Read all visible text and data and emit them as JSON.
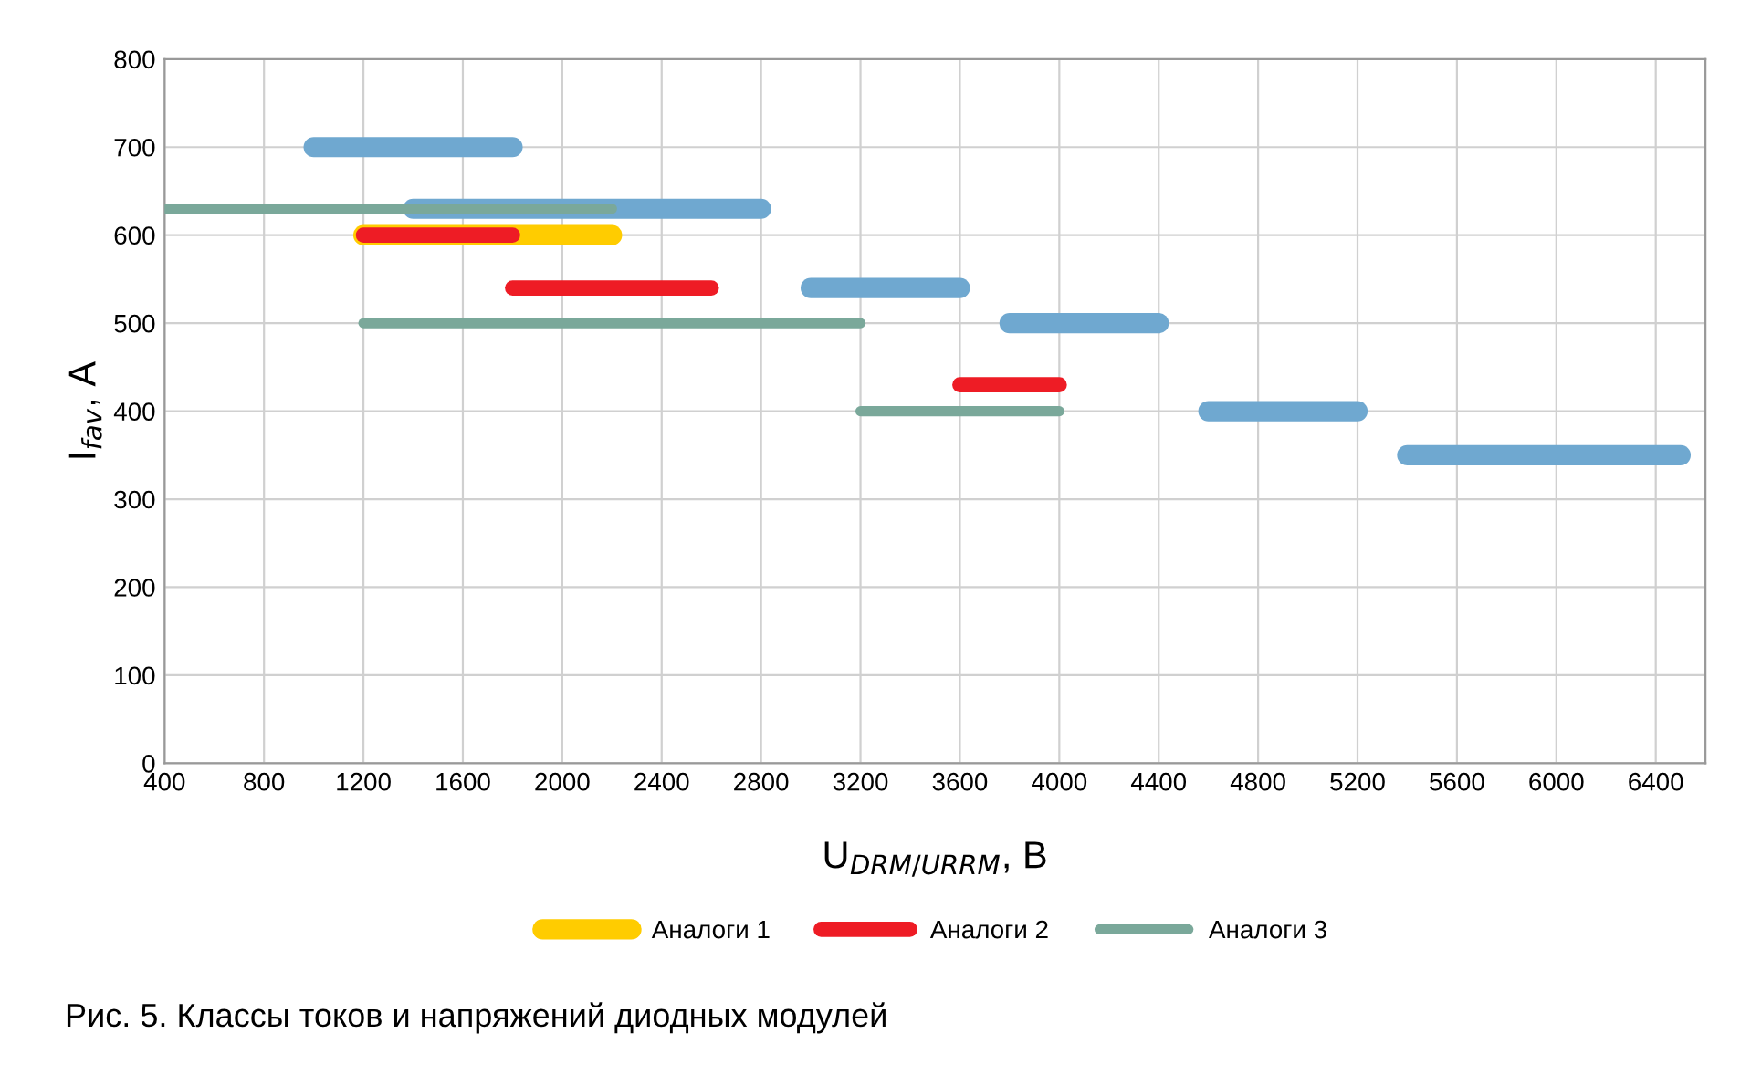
{
  "chart_data": {
    "type": "line",
    "xlabel": "U$_{DRM/URRM}$, В",
    "ylabel": "I$_{fav}$, A",
    "xlim": [
      400,
      6600
    ],
    "xticks": [
      400,
      800,
      1200,
      1600,
      2000,
      2400,
      2800,
      3200,
      3600,
      4000,
      4400,
      4800,
      5200,
      5600,
      6000,
      6400
    ],
    "ylim": [
      0,
      800
    ],
    "yticks": [
      0,
      100,
      200,
      300,
      400,
      500,
      600,
      700,
      800
    ],
    "grid": true,
    "legend": "bottom",
    "marker": "none",
    "line_style": "solid",
    "series": [
      {
        "name": "Аналоги 1",
        "color": "#ffcc00",
        "x": [
          1200,
          2200
        ],
        "values": [
          600,
          600
        ]
      },
      {
        "name": "Аналоги 2",
        "color": "#ee1c25",
        "x": [
          1200,
          1800
        ],
        "values": [
          600,
          600
        ]
      },
      {
        "color": "#ee1c25",
        "x": [
          1800,
          2600
        ],
        "values": [
          540,
          540
        ]
      },
      {
        "color": "#ee1c25",
        "x": [
          3600,
          4000
        ],
        "values": [
          430,
          430
        ]
      },
      {
        "name": "Аналоги 3",
        "color": "#7aa89a",
        "x": [
          400,
          2200
        ],
        "values": [
          630,
          630
        ]
      },
      {
        "color": "#7aa89a",
        "x": [
          1200,
          3200
        ],
        "values": [
          500,
          500
        ]
      },
      {
        "color": "#7aa89a",
        "x": [
          3200,
          4000
        ],
        "values": [
          400,
          400
        ]
      },
      {
        "color": "#6fa8d0",
        "x": [
          1000,
          1800
        ],
        "values": [
          700,
          700
        ]
      },
      {
        "color": "#6fa8d0",
        "x": [
          1400,
          2800
        ],
        "values": [
          630,
          630
        ]
      },
      {
        "color": "#6fa8d0",
        "x": [
          3000,
          3600
        ],
        "values": [
          540,
          540
        ]
      },
      {
        "color": "#6fa8d0",
        "x": [
          3800,
          4400
        ],
        "values": [
          500,
          500
        ]
      },
      {
        "color": "#6fa8d0",
        "x": [
          4600,
          5200
        ],
        "values": [
          400,
          400
        ]
      },
      {
        "color": "#6fa8d0",
        "x": [
          5400,
          6500
        ],
        "values": [
          350,
          350
        ]
      }
    ],
    "annotations": [
      "Рис. 5. Классы токов и напряжений диодных модулей"
    ]
  }
}
